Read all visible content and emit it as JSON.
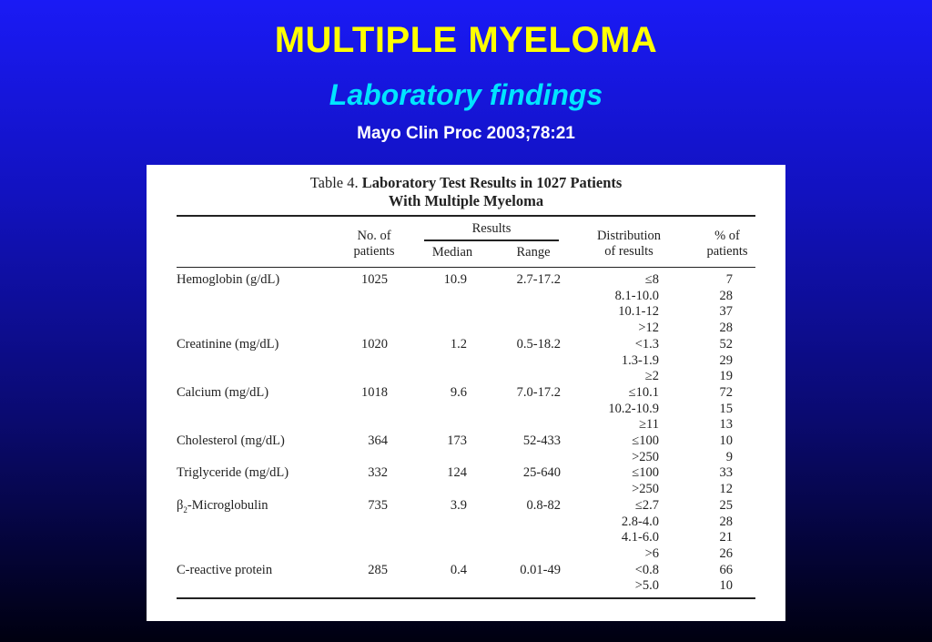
{
  "slide": {
    "title": "MULTIPLE MYELOMA",
    "subtitle": "Laboratory findings",
    "citation": "Mayo Clin Proc 2003;78:21"
  },
  "table": {
    "label": "Table 4.",
    "caption_line1": "Laboratory Test Results in 1027 Patients",
    "caption_line2": "With Multiple Myeloma",
    "headers": {
      "n_line1": "No. of",
      "n_line2": "patients",
      "results": "Results",
      "median": "Median",
      "range": "Range",
      "dist_line1": "Distribution",
      "dist_line2": "of results",
      "pct_line1": "% of",
      "pct_line2": "patients"
    },
    "rows": [
      {
        "name": "Hemoglobin (g/dL)",
        "n": "1025",
        "median": "10.9",
        "range": "2.7-17.2",
        "dist": [
          "≤8",
          "8.1-10.0",
          "10.1-12",
          ">12"
        ],
        "pct": [
          "7",
          "28",
          "37",
          "28"
        ]
      },
      {
        "name": "Creatinine (mg/dL)",
        "n": "1020",
        "median": "1.2",
        "range": "0.5-18.2",
        "dist": [
          "<1.3",
          "1.3-1.9",
          "≥2"
        ],
        "pct": [
          "52",
          "29",
          "19"
        ]
      },
      {
        "name": "Calcium (mg/dL)",
        "n": "1018",
        "median": "9.6",
        "range": "7.0-17.2",
        "dist": [
          "≤10.1",
          "10.2-10.9",
          "≥11"
        ],
        "pct": [
          "72",
          "15",
          "13"
        ]
      },
      {
        "name": "Cholesterol (mg/dL)",
        "n": "364",
        "median": "173",
        "range": "52-433",
        "dist": [
          "≤100",
          ">250"
        ],
        "pct": [
          "10",
          "9"
        ]
      },
      {
        "name": "Triglyceride (mg/dL)",
        "n": "332",
        "median": "124",
        "range": "25-640",
        "dist": [
          "≤100",
          ">250"
        ],
        "pct": [
          "33",
          "12"
        ]
      },
      {
        "name": "β2-Microglobulin",
        "n": "735",
        "median": "3.9",
        "range": "0.8-82",
        "dist": [
          "≤2.7",
          "2.8-4.0",
          "4.1-6.0",
          ">6"
        ],
        "pct": [
          "25",
          "28",
          "21",
          "26"
        ]
      },
      {
        "name": "C-reactive protein",
        "n": "285",
        "median": "0.4",
        "range": "0.01-49",
        "dist": [
          "<0.8",
          ">5.0"
        ],
        "pct": [
          "66",
          "10"
        ]
      }
    ]
  }
}
